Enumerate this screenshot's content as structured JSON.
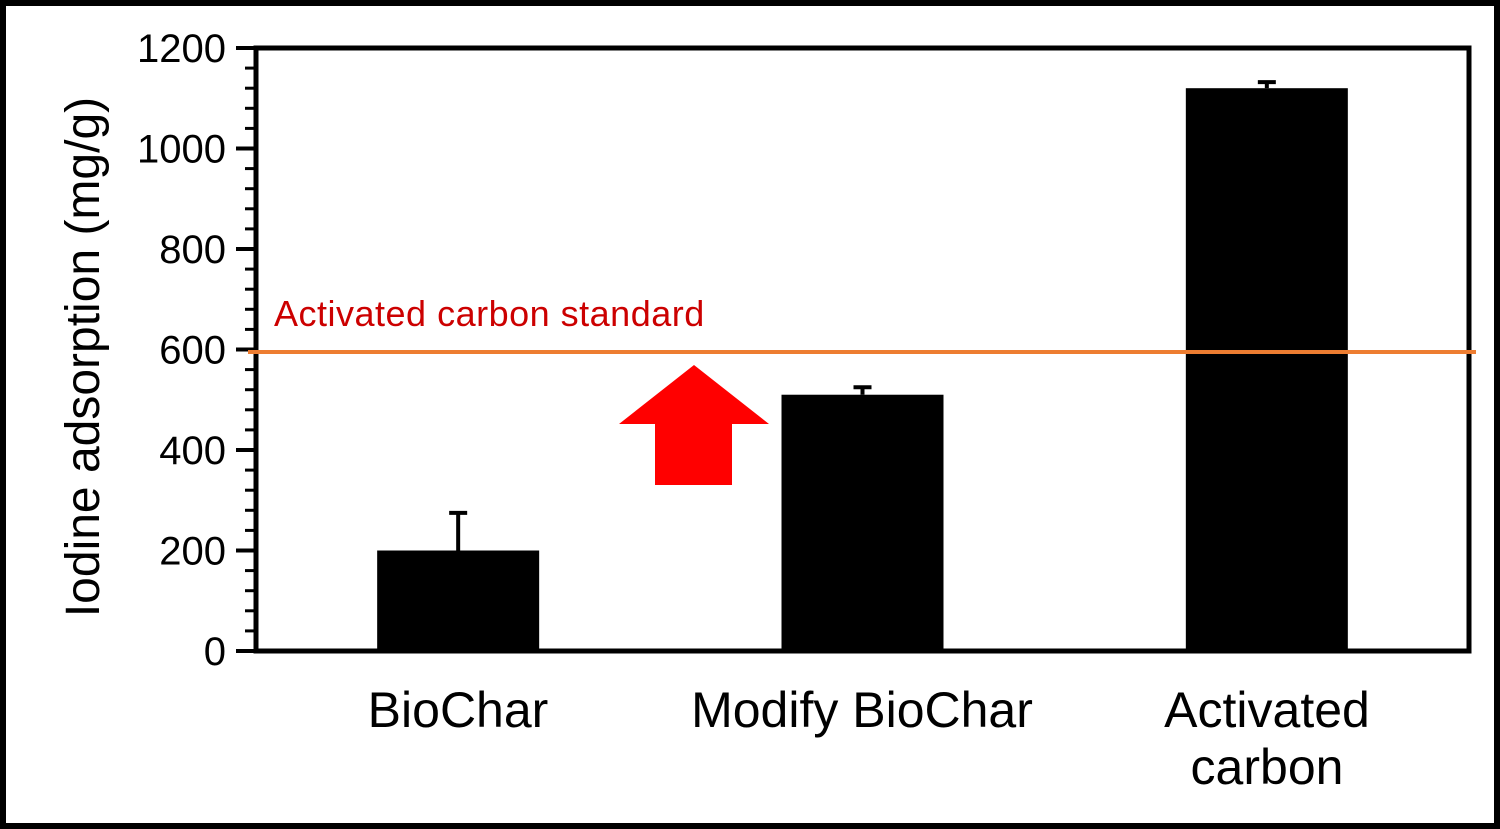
{
  "figure": {
    "background": "#ffffff",
    "frame_color": "#000000"
  },
  "chart_data": {
    "type": "bar",
    "title": "",
    "xlabel": "",
    "ylabel": "Iodine adsorption (mg/g)",
    "categories": [
      "BioChar",
      "Modify BioChar",
      "Activated carbon"
    ],
    "values": [
      200,
      510,
      1120
    ],
    "error_plus": [
      75,
      15,
      12
    ],
    "ylim": [
      0,
      1200
    ],
    "ytick_major": 200,
    "ytick_minor": 40,
    "ytick_labels": [
      "0",
      "200",
      "400",
      "600",
      "800",
      "1000",
      "1200"
    ],
    "grid": false,
    "legend": "none",
    "bar_color": "#000000",
    "axis_color": "#000000",
    "error_bar_color": "#000000",
    "standard_line": {
      "label": "Activated carbon standard",
      "value": 595,
      "line_color": "#ED7D31",
      "label_color": "#CC0000"
    },
    "arrow_annotation": {
      "shape": "up-arrow",
      "direction": "up",
      "color": "#FF0000",
      "points_to_category": "Modify BioChar"
    }
  }
}
